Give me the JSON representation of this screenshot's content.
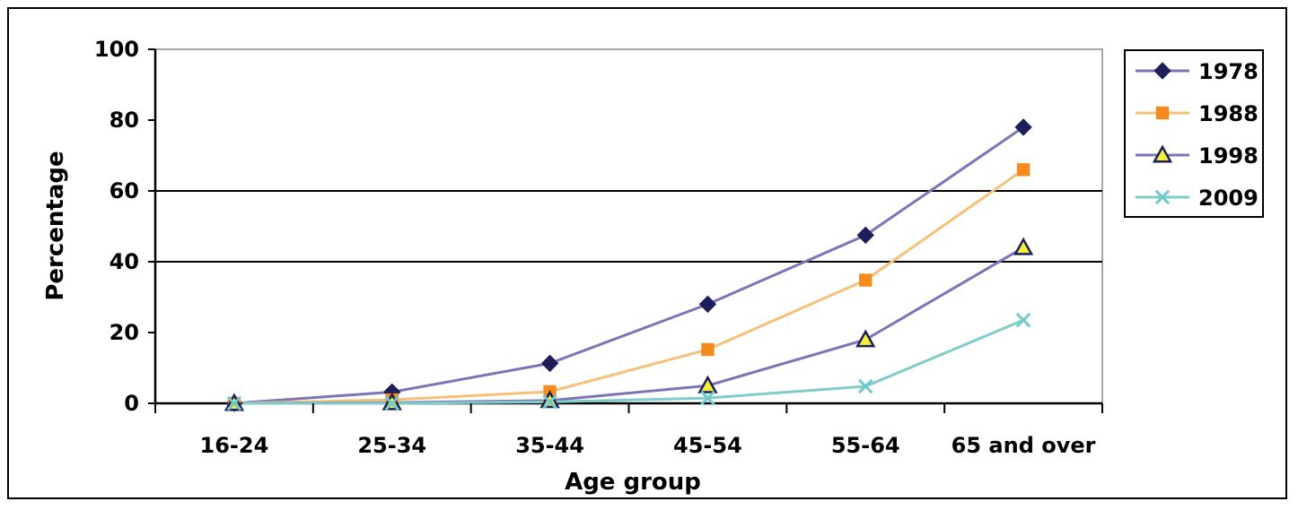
{
  "chart_data": {
    "type": "line",
    "categories": [
      "16-24",
      "25-34",
      "35-44",
      "45-54",
      "55-64",
      "65 and over"
    ],
    "xlabel": "Age group",
    "ylabel": "Percentage",
    "ylim": [
      0,
      100
    ],
    "yticks": [
      0,
      20,
      40,
      60,
      80,
      100
    ],
    "gridlines": [
      40,
      60
    ],
    "legend_position": "right",
    "series": [
      {
        "name": "1978",
        "color": "#7c74b6",
        "marker": "diamond",
        "marker_color": "#1e1f5a",
        "values": [
          0,
          3.2,
          11.3,
          28,
          47.5,
          78
        ]
      },
      {
        "name": "1988",
        "color": "#f7c079",
        "marker": "square",
        "marker_color": "#f58a1f",
        "values": [
          0,
          1.0,
          3.3,
          15.2,
          34.8,
          66
        ]
      },
      {
        "name": "1998",
        "color": "#7c74b6",
        "marker": "triangle",
        "marker_color": "#1e1f5a",
        "marker_fill": "#f2ee3a",
        "values": [
          0,
          0.2,
          0.8,
          5,
          18,
          44
        ]
      },
      {
        "name": "2009",
        "color": "#7fcdcb",
        "marker": "x",
        "marker_color": "#6fcad0",
        "values": [
          0,
          0,
          0.4,
          1.5,
          4.8,
          23.5
        ]
      }
    ]
  }
}
